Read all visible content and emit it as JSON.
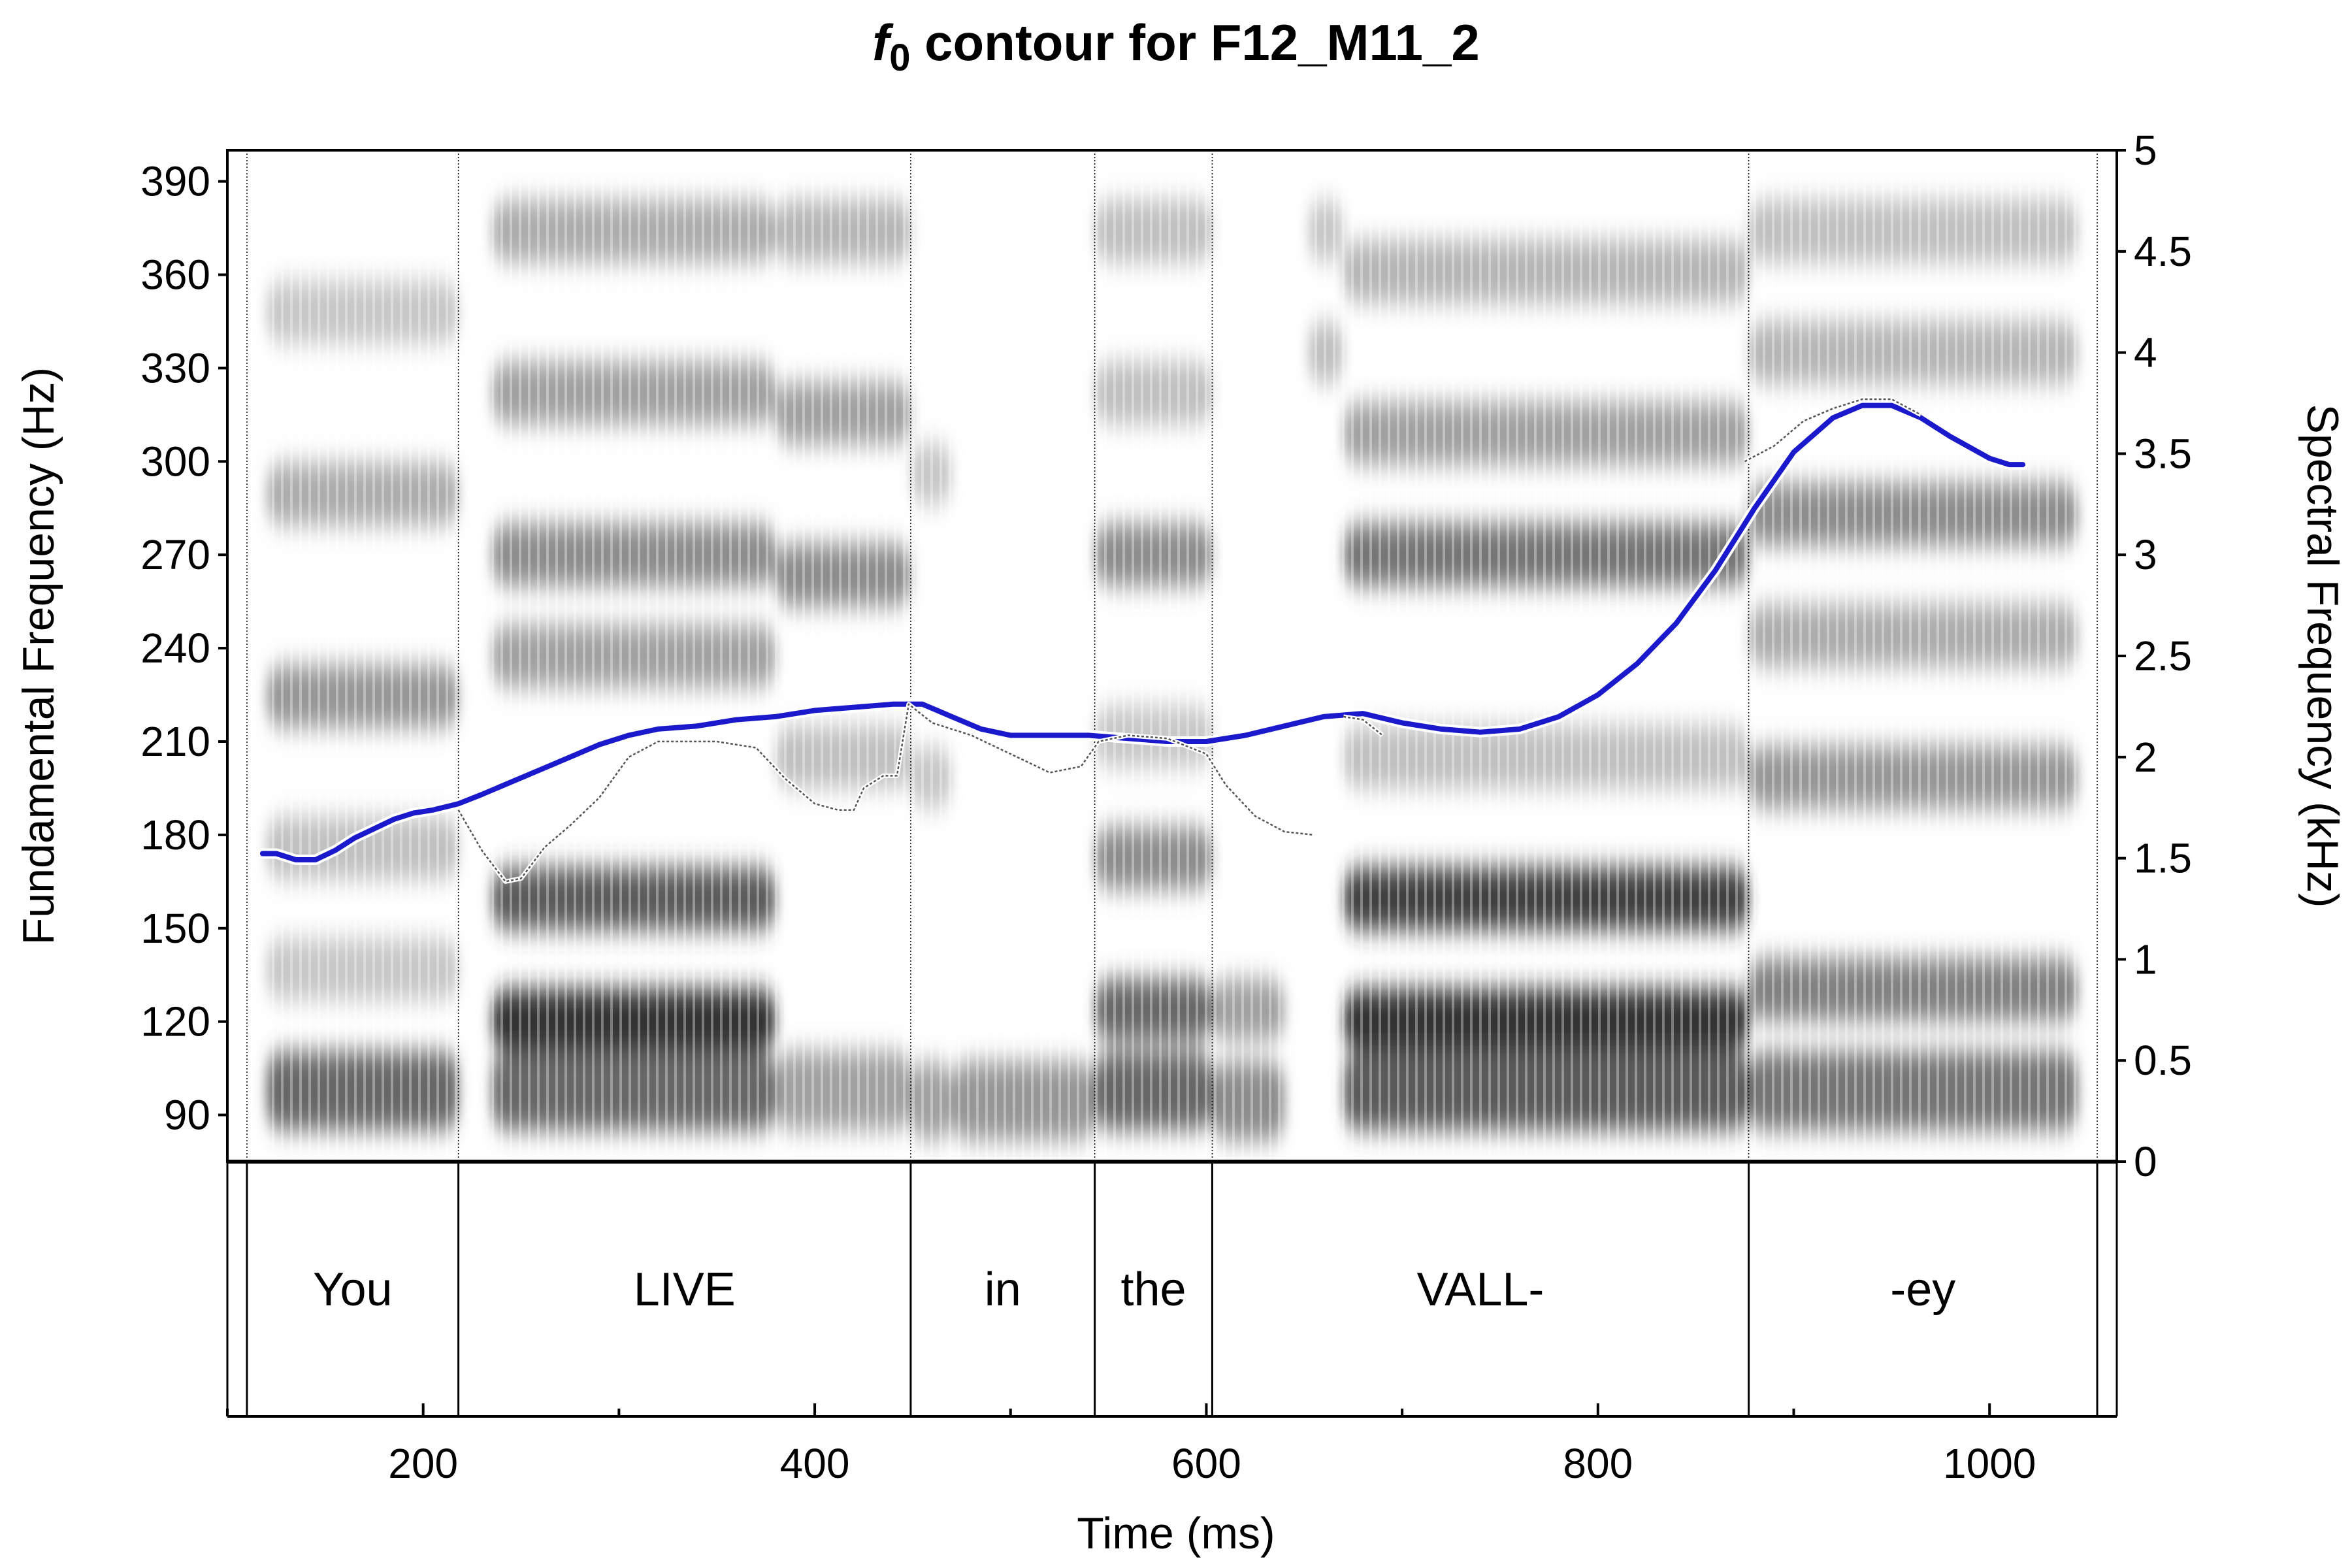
{
  "chart_data": {
    "type": "line",
    "title_italic": "f",
    "title_sub": "0",
    "title_rest": " contour for F12_M11_2",
    "xlabel": "Time (ms)",
    "ylabel_left": "Fundamental Frequency (Hz)",
    "ylabel_right": "Spectral Frequency (kHz)",
    "xlim": [
      100,
      1065
    ],
    "ylim_left": [
      75,
      400
    ],
    "ylim_right": [
      0,
      5
    ],
    "x_ticks_major": [
      200,
      400,
      600,
      800,
      1000
    ],
    "x_ticks_minor": [
      100,
      300,
      500,
      700,
      900
    ],
    "x_tick_labels": [
      "200",
      "400",
      "600",
      "800",
      "1000"
    ],
    "y_ticks_left": [
      90,
      120,
      150,
      180,
      210,
      240,
      270,
      300,
      330,
      360,
      390
    ],
    "y_tick_labels_left": [
      "90",
      "120",
      "150",
      "180",
      "210",
      "240",
      "270",
      "300",
      "330",
      "360",
      "390"
    ],
    "y_ticks_right": [
      0,
      0.5,
      1,
      1.5,
      2,
      2.5,
      3,
      3.5,
      4,
      4.5,
      5
    ],
    "y_tick_labels_right": [
      "0",
      "0.5",
      "1",
      "1.5",
      "2",
      "2.5",
      "3",
      "3.5",
      "4",
      "4.5",
      "5"
    ],
    "boundaries_ms": [
      110,
      218,
      449,
      543,
      603,
      877,
      1055
    ],
    "words": [
      {
        "label": "You",
        "start": 110,
        "end": 218
      },
      {
        "label": "LIVE",
        "start": 218,
        "end": 449
      },
      {
        "label": "in",
        "start": 449,
        "end": 543
      },
      {
        "label": "the",
        "start": 543,
        "end": 603
      },
      {
        "label": "VALL-",
        "start": 603,
        "end": 877
      },
      {
        "label": "-ey",
        "start": 877,
        "end": 1055
      }
    ],
    "series": [
      {
        "color": "#1a1acc",
        "x": [
          118,
          125,
          135,
          145,
          155,
          165,
          175,
          185,
          195,
          205,
          218,
          230,
          245,
          260,
          275,
          290,
          305,
          320,
          340,
          360,
          380,
          400,
          420,
          440,
          455,
          470,
          485,
          500,
          520,
          540,
          560,
          580,
          600,
          620,
          640,
          660,
          680,
          700,
          720,
          740,
          760,
          780,
          800,
          820,
          840,
          860,
          880,
          900,
          920,
          935,
          950,
          965,
          980,
          1000,
          1010,
          1017
        ],
        "y": [
          174,
          174,
          172,
          172,
          175,
          179,
          182,
          185,
          187,
          188,
          190,
          193,
          197,
          201,
          205,
          209,
          212,
          214,
          215,
          217,
          218,
          220,
          221,
          222,
          222,
          218,
          214,
          212,
          212,
          212,
          211,
          210,
          210,
          212,
          215,
          218,
          219,
          216,
          214,
          213,
          214,
          218,
          225,
          235,
          248,
          265,
          285,
          303,
          314,
          318,
          318,
          314,
          308,
          301,
          299,
          299
        ]
      },
      {
        "color": "#555555",
        "x": [
          218,
          230,
          242,
          250,
          262,
          275,
          290,
          305,
          320,
          350,
          370,
          385,
          400,
          412,
          420,
          425,
          435,
          442,
          448,
          460,
          480,
          500,
          520,
          536,
          545,
          560,
          580,
          600,
          610,
          625,
          640,
          655
        ],
        "y": [
          188,
          175,
          165,
          166,
          176,
          183,
          192,
          205,
          210,
          210,
          208,
          198,
          190,
          188,
          188,
          195,
          199,
          199,
          222,
          216,
          212,
          206,
          200,
          202,
          210,
          212,
          211,
          206,
          196,
          186,
          181,
          180
        ]
      },
      {
        "color": "#555555",
        "x": [
          670,
          680,
          690
        ],
        "y": [
          218,
          217,
          212
        ]
      },
      {
        "color": "#555555",
        "x": [
          875,
          890,
          905,
          920,
          935,
          950,
          965
        ],
        "y": [
          300,
          305,
          313,
          317,
          320,
          320,
          315
        ]
      }
    ],
    "spectrogram_formants": [
      {
        "x0": 120,
        "x1": 218,
        "freqs_khz": [
          0.35,
          0.95,
          1.55,
          2.3,
          3.3,
          4.2
        ],
        "strengths": [
          0.75,
          0.3,
          0.35,
          0.55,
          0.45,
          0.3
        ]
      },
      {
        "x0": 235,
        "x1": 380,
        "freqs_khz": [
          0.35,
          0.7,
          1.3,
          2.5,
          3.0,
          3.8,
          4.6
        ],
        "strengths": [
          0.75,
          0.95,
          0.8,
          0.5,
          0.6,
          0.5,
          0.45
        ]
      },
      {
        "x0": 380,
        "x1": 449,
        "freqs_khz": [
          0.35,
          2.0,
          2.9,
          3.7,
          4.6
        ],
        "strengths": [
          0.5,
          0.35,
          0.6,
          0.5,
          0.4
        ]
      },
      {
        "x0": 449,
        "x1": 470,
        "freqs_khz": [
          0.3,
          1.9,
          3.4
        ],
        "strengths": [
          0.5,
          0.3,
          0.3
        ]
      },
      {
        "x0": 470,
        "x1": 543,
        "freqs_khz": [
          0.3
        ],
        "strengths": [
          0.55
        ]
      },
      {
        "x0": 543,
        "x1": 603,
        "freqs_khz": [
          0.35,
          0.75,
          1.5,
          2.1,
          3.0,
          3.8,
          4.6
        ],
        "strengths": [
          0.75,
          0.75,
          0.6,
          0.3,
          0.6,
          0.35,
          0.35
        ]
      },
      {
        "x0": 603,
        "x1": 640,
        "freqs_khz": [
          0.3,
          0.75
        ],
        "strengths": [
          0.6,
          0.5
        ]
      },
      {
        "x0": 652,
        "x1": 670,
        "freqs_khz": [
          4.0,
          4.6
        ],
        "strengths": [
          0.35,
          0.3
        ]
      },
      {
        "x0": 670,
        "x1": 877,
        "freqs_khz": [
          0.35,
          0.7,
          1.3,
          2.0,
          3.0,
          3.6,
          4.4
        ],
        "strengths": [
          0.8,
          0.95,
          0.9,
          0.35,
          0.7,
          0.5,
          0.4
        ]
      },
      {
        "x0": 877,
        "x1": 1045,
        "freqs_khz": [
          0.35,
          0.85,
          1.9,
          2.6,
          3.2,
          4.0,
          4.6
        ],
        "strengths": [
          0.7,
          0.65,
          0.55,
          0.45,
          0.6,
          0.4,
          0.35
        ]
      }
    ]
  }
}
